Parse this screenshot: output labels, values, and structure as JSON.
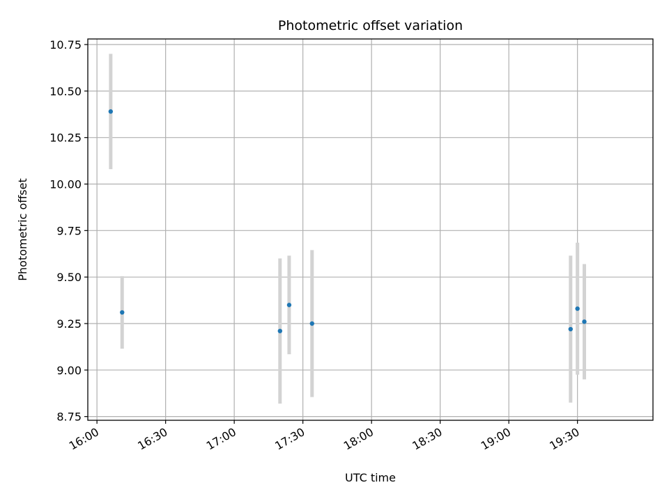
{
  "chart_data": {
    "type": "scatter",
    "title": "Photometric offset variation",
    "xlabel": "UTC time",
    "ylabel": "Photometric offset",
    "x_ticks": [
      "16:00",
      "16:30",
      "17:00",
      "17:30",
      "18:00",
      "18:30",
      "19:00",
      "19:30"
    ],
    "y_ticks": [
      "8.75",
      "9.00",
      "9.25",
      "9.50",
      "9.75",
      "10.00",
      "10.25",
      "10.50",
      "10.75"
    ],
    "xlim": [
      "15:56",
      "20:03"
    ],
    "ylim": [
      8.73,
      10.78
    ],
    "grid": true,
    "errorbar_color": "#d3d3d3",
    "marker_color": "#1f77b4",
    "points": [
      {
        "x": "16:06",
        "y": 10.39,
        "yerr": 0.31
      },
      {
        "x": "16:11",
        "y": 9.31,
        "yerr": 0.195
      },
      {
        "x": "17:20",
        "y": 9.21,
        "yerr": 0.39
      },
      {
        "x": "17:24",
        "y": 9.35,
        "yerr": 0.265
      },
      {
        "x": "17:34",
        "y": 9.25,
        "yerr": 0.395
      },
      {
        "x": "19:27",
        "y": 9.22,
        "yerr": 0.395
      },
      {
        "x": "19:30",
        "y": 9.33,
        "yerr": 0.355
      },
      {
        "x": "19:33",
        "y": 9.26,
        "yerr": 0.31
      }
    ]
  }
}
